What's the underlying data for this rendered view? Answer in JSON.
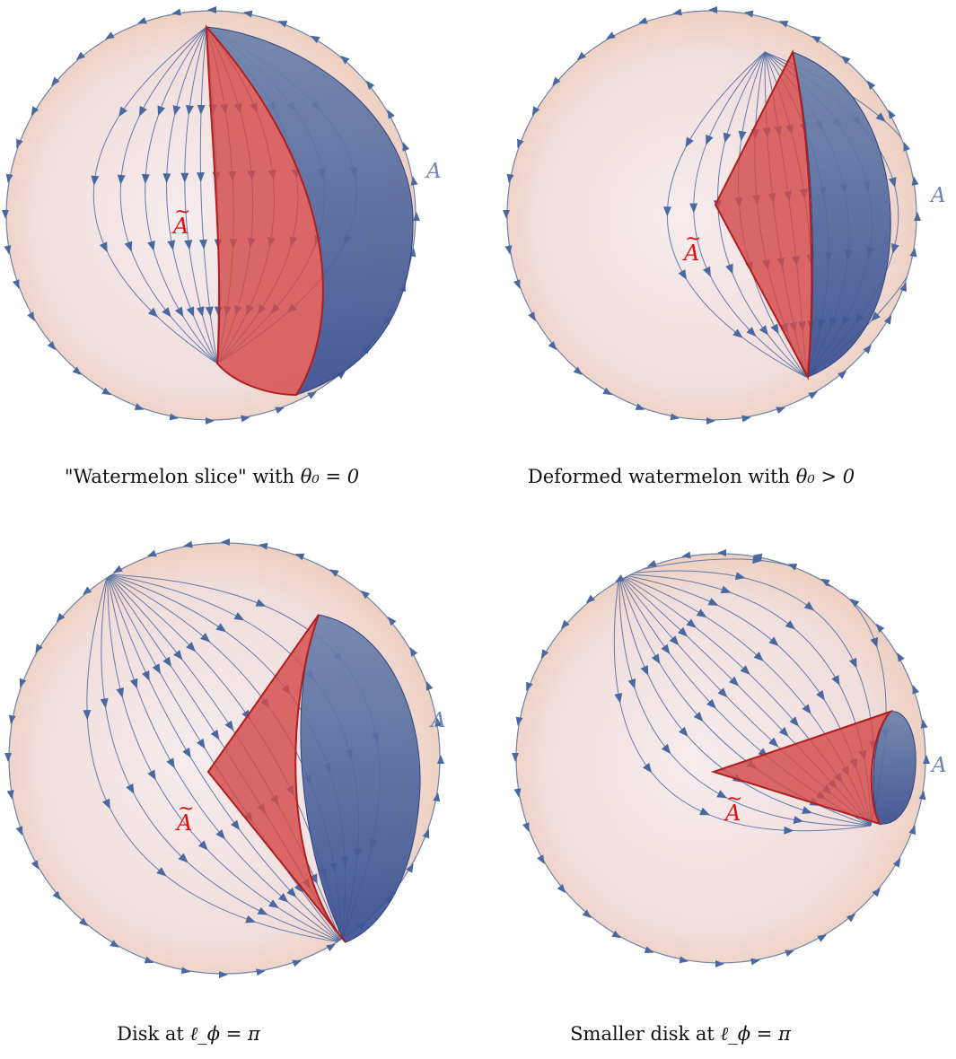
{
  "colors": {
    "flow_arrows": "#4a68a0",
    "region_A": "#3d5a96",
    "region_A_tilde": "#d44a4a",
    "label_A": "#6f86b4",
    "label_A_tilde": "#e01010",
    "sphere_top": "#ecc8b0",
    "sphere_center": "#f6ecee"
  },
  "labels": {
    "A": "A",
    "A_tilde": "A"
  },
  "panels": [
    {
      "id": "watermelon-slice",
      "caption_text": "\"Watermelon slice\" with ",
      "caption_math": "θ₀ = 0"
    },
    {
      "id": "deformed-watermelon",
      "caption_text": "Deformed watermelon with ",
      "caption_math": "θ₀ > 0"
    },
    {
      "id": "disk",
      "caption_text": "Disk at ",
      "caption_math": "ℓ_ϕ = π"
    },
    {
      "id": "smaller-disk",
      "caption_text": "Smaller disk at ",
      "caption_math": "ℓ_ϕ = π"
    }
  ]
}
